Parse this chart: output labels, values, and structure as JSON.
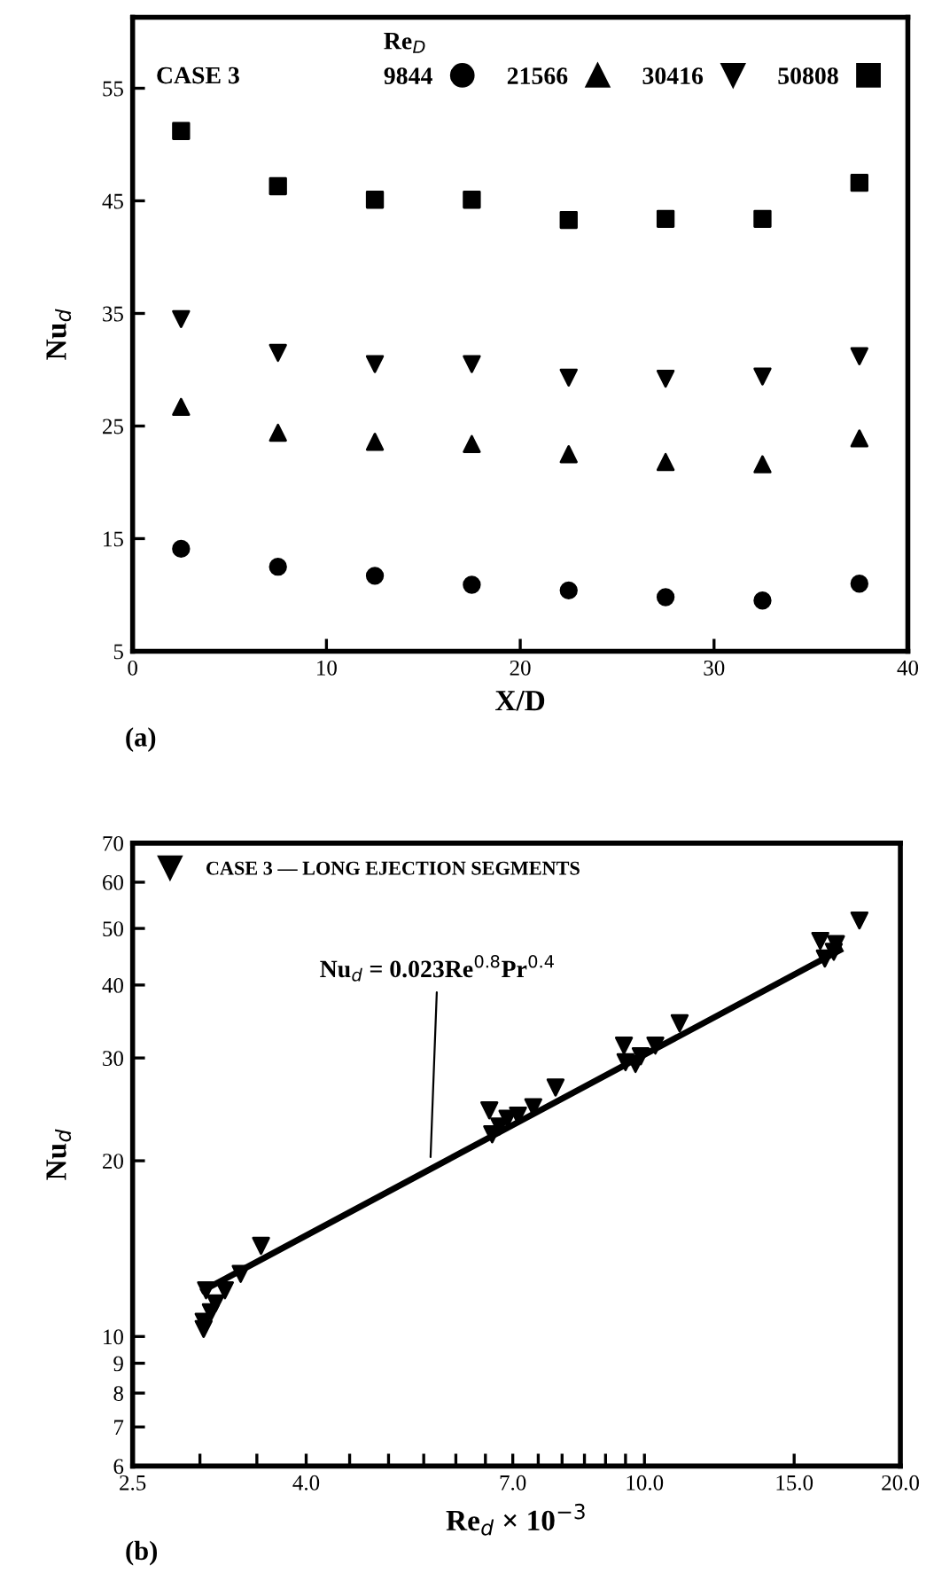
{
  "chart_data": [
    {
      "type": "scatter",
      "xlabel": "X/D",
      "ylabel": "Nu$_{d}$",
      "legend_title": "Re$_{D}$",
      "legend": "top right",
      "grid": false,
      "annotations": [
        "CASE 3",
        "(a)"
      ],
      "xlim": [
        0,
        40
      ],
      "xticks": [
        0,
        10,
        20,
        30,
        40
      ],
      "ylim": [
        5,
        61.3
      ],
      "yticks": [
        5,
        15,
        25,
        35,
        45,
        55
      ],
      "x": [
        2.5,
        7.5,
        12.5,
        17.5,
        22.5,
        27.5,
        32.5,
        37.5
      ],
      "series": [
        {
          "name": "9844",
          "color": "#000000",
          "marker": "circle",
          "values": [
            14.1,
            12.5,
            11.7,
            10.9,
            10.4,
            9.8,
            9.5,
            11.0
          ]
        },
        {
          "name": "21566",
          "color": "#000000",
          "marker": "triangle",
          "values": [
            26.7,
            24.4,
            23.6,
            23.4,
            22.5,
            21.8,
            21.6,
            23.9
          ]
        },
        {
          "name": "30416",
          "color": "#000000",
          "marker": "triangle-down",
          "values": [
            34.5,
            31.5,
            30.5,
            30.5,
            29.3,
            29.2,
            29.4,
            31.2
          ]
        },
        {
          "name": "50808",
          "color": "#000000",
          "marker": "square",
          "values": [
            51.2,
            46.3,
            45.1,
            45.1,
            43.3,
            43.4,
            43.4,
            46.6
          ]
        }
      ]
    },
    {
      "type": "scatter",
      "xlabel": "Re$_{d}$ × 10$^{−3}$",
      "ylabel": "Nu$_{d}$",
      "legend": "top left",
      "grid": false,
      "log": "xy",
      "annotations": [
        {
          "text": "Nu$_{d}$ = 0.023Re$^{0.8}$Pr$^{0.4}$",
          "x": 5.6,
          "y": 19.9
        },
        "(b)"
      ],
      "xlim": [
        2.5,
        20
      ],
      "xticks": [
        {
          "value": 2.5,
          "label": "2.5"
        },
        {
          "value": 3,
          "label": null
        },
        {
          "value": 3.5,
          "label": null
        },
        {
          "value": 4,
          "label": "4.0"
        },
        {
          "value": 4.5,
          "label": null
        },
        {
          "value": 5,
          "label": null
        },
        {
          "value": 5.5,
          "label": null
        },
        {
          "value": 6,
          "label": null
        },
        {
          "value": 6.5,
          "label": null
        },
        {
          "value": 7,
          "label": "7.0"
        },
        {
          "value": 7.5,
          "label": null
        },
        {
          "value": 8,
          "label": null
        },
        {
          "value": 8.5,
          "label": null
        },
        {
          "value": 9,
          "label": null
        },
        {
          "value": 9.5,
          "label": null
        },
        {
          "value": 10,
          "label": "10.0"
        },
        {
          "value": 15,
          "label": "15.0"
        },
        {
          "value": 20,
          "label": "20.0"
        }
      ],
      "ylim": [
        6,
        70
      ],
      "yticks": [
        6,
        7,
        8,
        9,
        10,
        20,
        30,
        40,
        50,
        60,
        70
      ],
      "series": [
        {
          "name": "CASE 3 — LONG EJECTION SEGMENTS",
          "color": "#000000",
          "marker": "triangle-down",
          "x": [
            3.05,
            3.03,
            3.03,
            3.09,
            3.13,
            3.21,
            3.35,
            3.54,
            6.57,
            6.62,
            6.75,
            6.9,
            7.1,
            7.4,
            7.86,
            9.46,
            9.5,
            9.76,
            9.9,
            10.3,
            11.0,
            16.1,
            16.3,
            16.7,
            16.8,
            17.9
          ],
          "values": [
            12.0,
            10.6,
            10.3,
            11.0,
            11.4,
            12.0,
            12.8,
            14.3,
            24.4,
            22.2,
            22.9,
            23.6,
            23.9,
            24.7,
            26.7,
            31.5,
            29.5,
            29.3,
            30.2,
            31.5,
            34.4,
            47.6,
            44.4,
            45.6,
            47.0,
            51.6
          ]
        },
        {
          "type": "line",
          "color": "#000000",
          "marker": "none",
          "x": [
            3.03,
            16.98
          ],
          "values": [
            12.0,
            45.9
          ]
        }
      ]
    }
  ]
}
